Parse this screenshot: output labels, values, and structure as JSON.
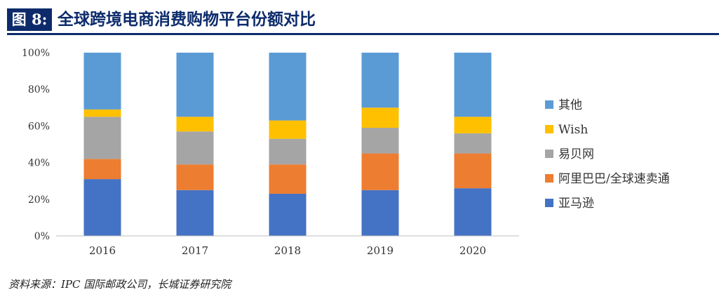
{
  "header": {
    "figure_label": "图 8:",
    "title": "全球跨境电商消费购物平台份额对比"
  },
  "chart_data": {
    "type": "bar",
    "stacked": true,
    "title": "全球跨境电商消费购物平台份额对比",
    "categories": [
      "2016",
      "2017",
      "2018",
      "2019",
      "2020"
    ],
    "series": [
      {
        "name": "亚马逊",
        "color": "#4472c4",
        "values": [
          31,
          25,
          23,
          25,
          26
        ]
      },
      {
        "name": "阿里巴巴/全球速卖通",
        "color": "#ed7d31",
        "values": [
          11,
          14,
          16,
          20,
          19
        ]
      },
      {
        "name": "易贝网",
        "color": "#a5a5a5",
        "values": [
          23,
          18,
          14,
          14,
          11
        ]
      },
      {
        "name": "Wish",
        "color": "#ffc000",
        "values": [
          4,
          8,
          10,
          11,
          9
        ]
      },
      {
        "name": "其他",
        "color": "#5b9bd5",
        "values": [
          31,
          35,
          37,
          30,
          35
        ]
      }
    ],
    "legend_order": [
      "其他",
      "Wish",
      "易贝网",
      "阿里巴巴/全球速卖通",
      "亚马逊"
    ],
    "yticks": [
      "0%",
      "20%",
      "40%",
      "60%",
      "80%",
      "100%"
    ],
    "ylim": [
      0,
      100
    ],
    "xlabel": "",
    "ylabel": "",
    "legend_position": "right"
  },
  "source": "资料来源：IPC 国际邮政公司，长城证券研究院"
}
